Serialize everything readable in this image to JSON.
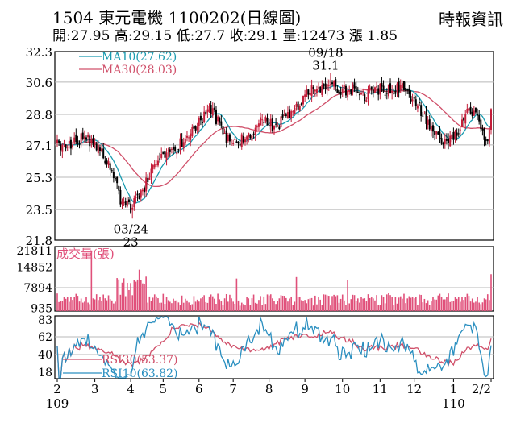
{
  "header": {
    "title": "1504  東元電機 1100202(日線圖)",
    "source": "時報資訊",
    "quote": "開:27.95 高:29.15 低:27.7 收:29.1 量:12473 漲 1.85"
  },
  "colors": {
    "up": "#c41e3a",
    "down": "#000000",
    "ma10": "#1a9bb0",
    "ma30": "#d0506a",
    "volume": "#e0507a",
    "rsi30": "#d0506a",
    "rsi10": "#2a8fc0",
    "grid": "#b8b8b8"
  },
  "chart_data": [
    {
      "type": "candlestick",
      "y_ticks": [
        "32.3",
        "30.6",
        "28.8",
        "27.1",
        "25.3",
        "23.5",
        "21.8"
      ],
      "ylim": [
        21.8,
        32.3
      ],
      "legend": [
        {
          "name": "MA10(27.62)",
          "color": "#1a9bb0"
        },
        {
          "name": "MA30(28.03)",
          "color": "#d0506a"
        }
      ],
      "annotations": [
        {
          "date": "03/24",
          "value": "23",
          "kind": "low"
        },
        {
          "date": "09/18",
          "value": "31.1",
          "kind": "high"
        }
      ],
      "close_anchors": [
        [
          0,
          27.1
        ],
        [
          8,
          27.0
        ],
        [
          15,
          27.6
        ],
        [
          25,
          26.9
        ],
        [
          32,
          25.8
        ],
        [
          37,
          24.0
        ],
        [
          43,
          23.6
        ],
        [
          48,
          24.2
        ],
        [
          55,
          25.6
        ],
        [
          62,
          26.6
        ],
        [
          70,
          27.0
        ],
        [
          78,
          27.6
        ],
        [
          84,
          28.4
        ],
        [
          89,
          29.1
        ],
        [
          93,
          28.6
        ],
        [
          98,
          27.5
        ],
        [
          105,
          27.3
        ],
        [
          112,
          27.6
        ],
        [
          120,
          28.6
        ],
        [
          128,
          28.1
        ],
        [
          135,
          28.7
        ],
        [
          143,
          29.6
        ],
        [
          150,
          30.2
        ],
        [
          157,
          30.4
        ],
        [
          162,
          30.5
        ],
        [
          166,
          30.1
        ],
        [
          172,
          30.2
        ],
        [
          180,
          29.9
        ],
        [
          188,
          30.2
        ],
        [
          196,
          30.1
        ],
        [
          203,
          30.3
        ],
        [
          210,
          29.5
        ],
        [
          217,
          28.4
        ],
        [
          222,
          27.6
        ],
        [
          227,
          27.3
        ],
        [
          232,
          27.6
        ],
        [
          237,
          28.4
        ],
        [
          241,
          29.1
        ],
        [
          245,
          28.7
        ],
        [
          249,
          27.7
        ],
        [
          252,
          27.2
        ],
        [
          254,
          29.1
        ]
      ]
    },
    {
      "type": "bar",
      "title": "成交量(張)",
      "y_ticks": [
        "21811",
        "14852",
        "7894",
        "935"
      ],
      "ylim": [
        0,
        21811
      ]
    },
    {
      "type": "line",
      "y_ticks": [
        "83",
        "62",
        "40",
        "18"
      ],
      "ylim": [
        10,
        88
      ],
      "series": [
        {
          "name": "RSI30(53.37)",
          "color": "#d0506a"
        },
        {
          "name": "RSI10(63.82)",
          "color": "#2a8fc0"
        }
      ]
    }
  ],
  "x_axis": {
    "labels": [
      "2",
      "3",
      "4",
      "5",
      "6",
      "7",
      "8",
      "9",
      "10",
      "11",
      "12",
      "1",
      "2/2"
    ],
    "label_index": [
      0,
      22,
      43,
      62,
      83,
      103,
      124,
      145,
      167,
      189,
      209,
      232,
      254
    ],
    "year_labels": [
      {
        "text": "109",
        "index": 0
      },
      {
        "text": "110",
        "index": 232
      }
    ]
  }
}
